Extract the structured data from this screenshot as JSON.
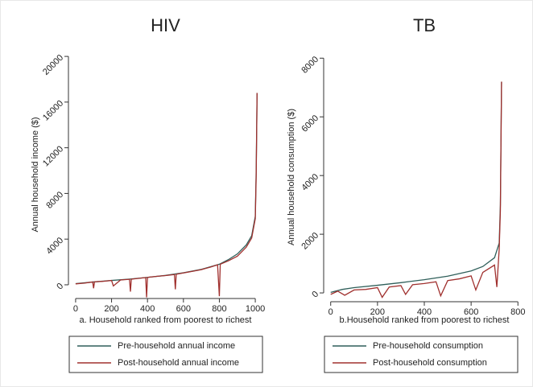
{
  "chart_data": [
    {
      "type": "line",
      "title": "HIV",
      "x_label": "a. Household ranked from poorest to richest",
      "y_label": "Annual household income ($)",
      "xlim": [
        -40,
        1040
      ],
      "ylim": [
        -1200,
        20500
      ],
      "xticks": [
        0,
        200,
        400,
        600,
        800,
        1000
      ],
      "yticks": [
        0,
        4000,
        8000,
        12000,
        16000,
        20000
      ],
      "series": [
        {
          "name": "Pre-household annual income",
          "color": "#2f5f5a",
          "x": [
            0,
            100,
            200,
            300,
            400,
            500,
            600,
            700,
            800,
            850,
            900,
            950,
            980,
            1000,
            1005,
            1010
          ],
          "values": [
            100,
            250,
            380,
            500,
            650,
            820,
            1050,
            1350,
            1800,
            2200,
            2700,
            3500,
            4300,
            6000,
            10000,
            16800
          ]
        },
        {
          "name": "Post-household annual income",
          "color": "#a0302e",
          "x": [
            0,
            50,
            95,
            100,
            105,
            150,
            200,
            210,
            250,
            300,
            305,
            310,
            350,
            390,
            395,
            400,
            450,
            500,
            550,
            555,
            560,
            600,
            650,
            700,
            750,
            790,
            800,
            805,
            850,
            900,
            950,
            980,
            1000,
            1005,
            1010
          ],
          "values": [
            80,
            150,
            250,
            -300,
            260,
            300,
            380,
            -100,
            420,
            480,
            -600,
            490,
            560,
            630,
            -1100,
            650,
            740,
            810,
            900,
            -400,
            920,
            1040,
            1180,
            1330,
            1550,
            1750,
            -1000,
            1800,
            2100,
            2500,
            3300,
            4100,
            5800,
            9500,
            16800
          ]
        }
      ]
    },
    {
      "type": "line",
      "title": "TB",
      "x_label": "b.Household ranked from poorest to richest",
      "y_label": "Annual household consumption ($)",
      "xlim": [
        -30,
        830
      ],
      "ylim": [
        -300,
        8200
      ],
      "xticks": [
        0,
        200,
        400,
        600,
        800
      ],
      "yticks": [
        0,
        2000,
        4000,
        6000,
        8000
      ],
      "series": [
        {
          "name": "Pre-household consumption",
          "color": "#2f5f5a",
          "x": [
            0,
            50,
            100,
            200,
            300,
            400,
            500,
            600,
            650,
            700,
            720,
            725,
            730
          ],
          "values": [
            20,
            120,
            180,
            260,
            350,
            450,
            570,
            750,
            900,
            1200,
            1700,
            3000,
            7200
          ]
        },
        {
          "name": "Post-household consumption",
          "color": "#a0302e",
          "x": [
            0,
            30,
            60,
            100,
            150,
            200,
            220,
            250,
            300,
            320,
            350,
            400,
            450,
            470,
            500,
            550,
            600,
            620,
            650,
            700,
            710,
            720,
            725,
            730
          ],
          "values": [
            -50,
            60,
            -80,
            100,
            120,
            180,
            -150,
            200,
            250,
            -50,
            280,
            320,
            380,
            -100,
            420,
            480,
            580,
            100,
            700,
            950,
            200,
            1500,
            2800,
            7200
          ]
        }
      ]
    }
  ]
}
